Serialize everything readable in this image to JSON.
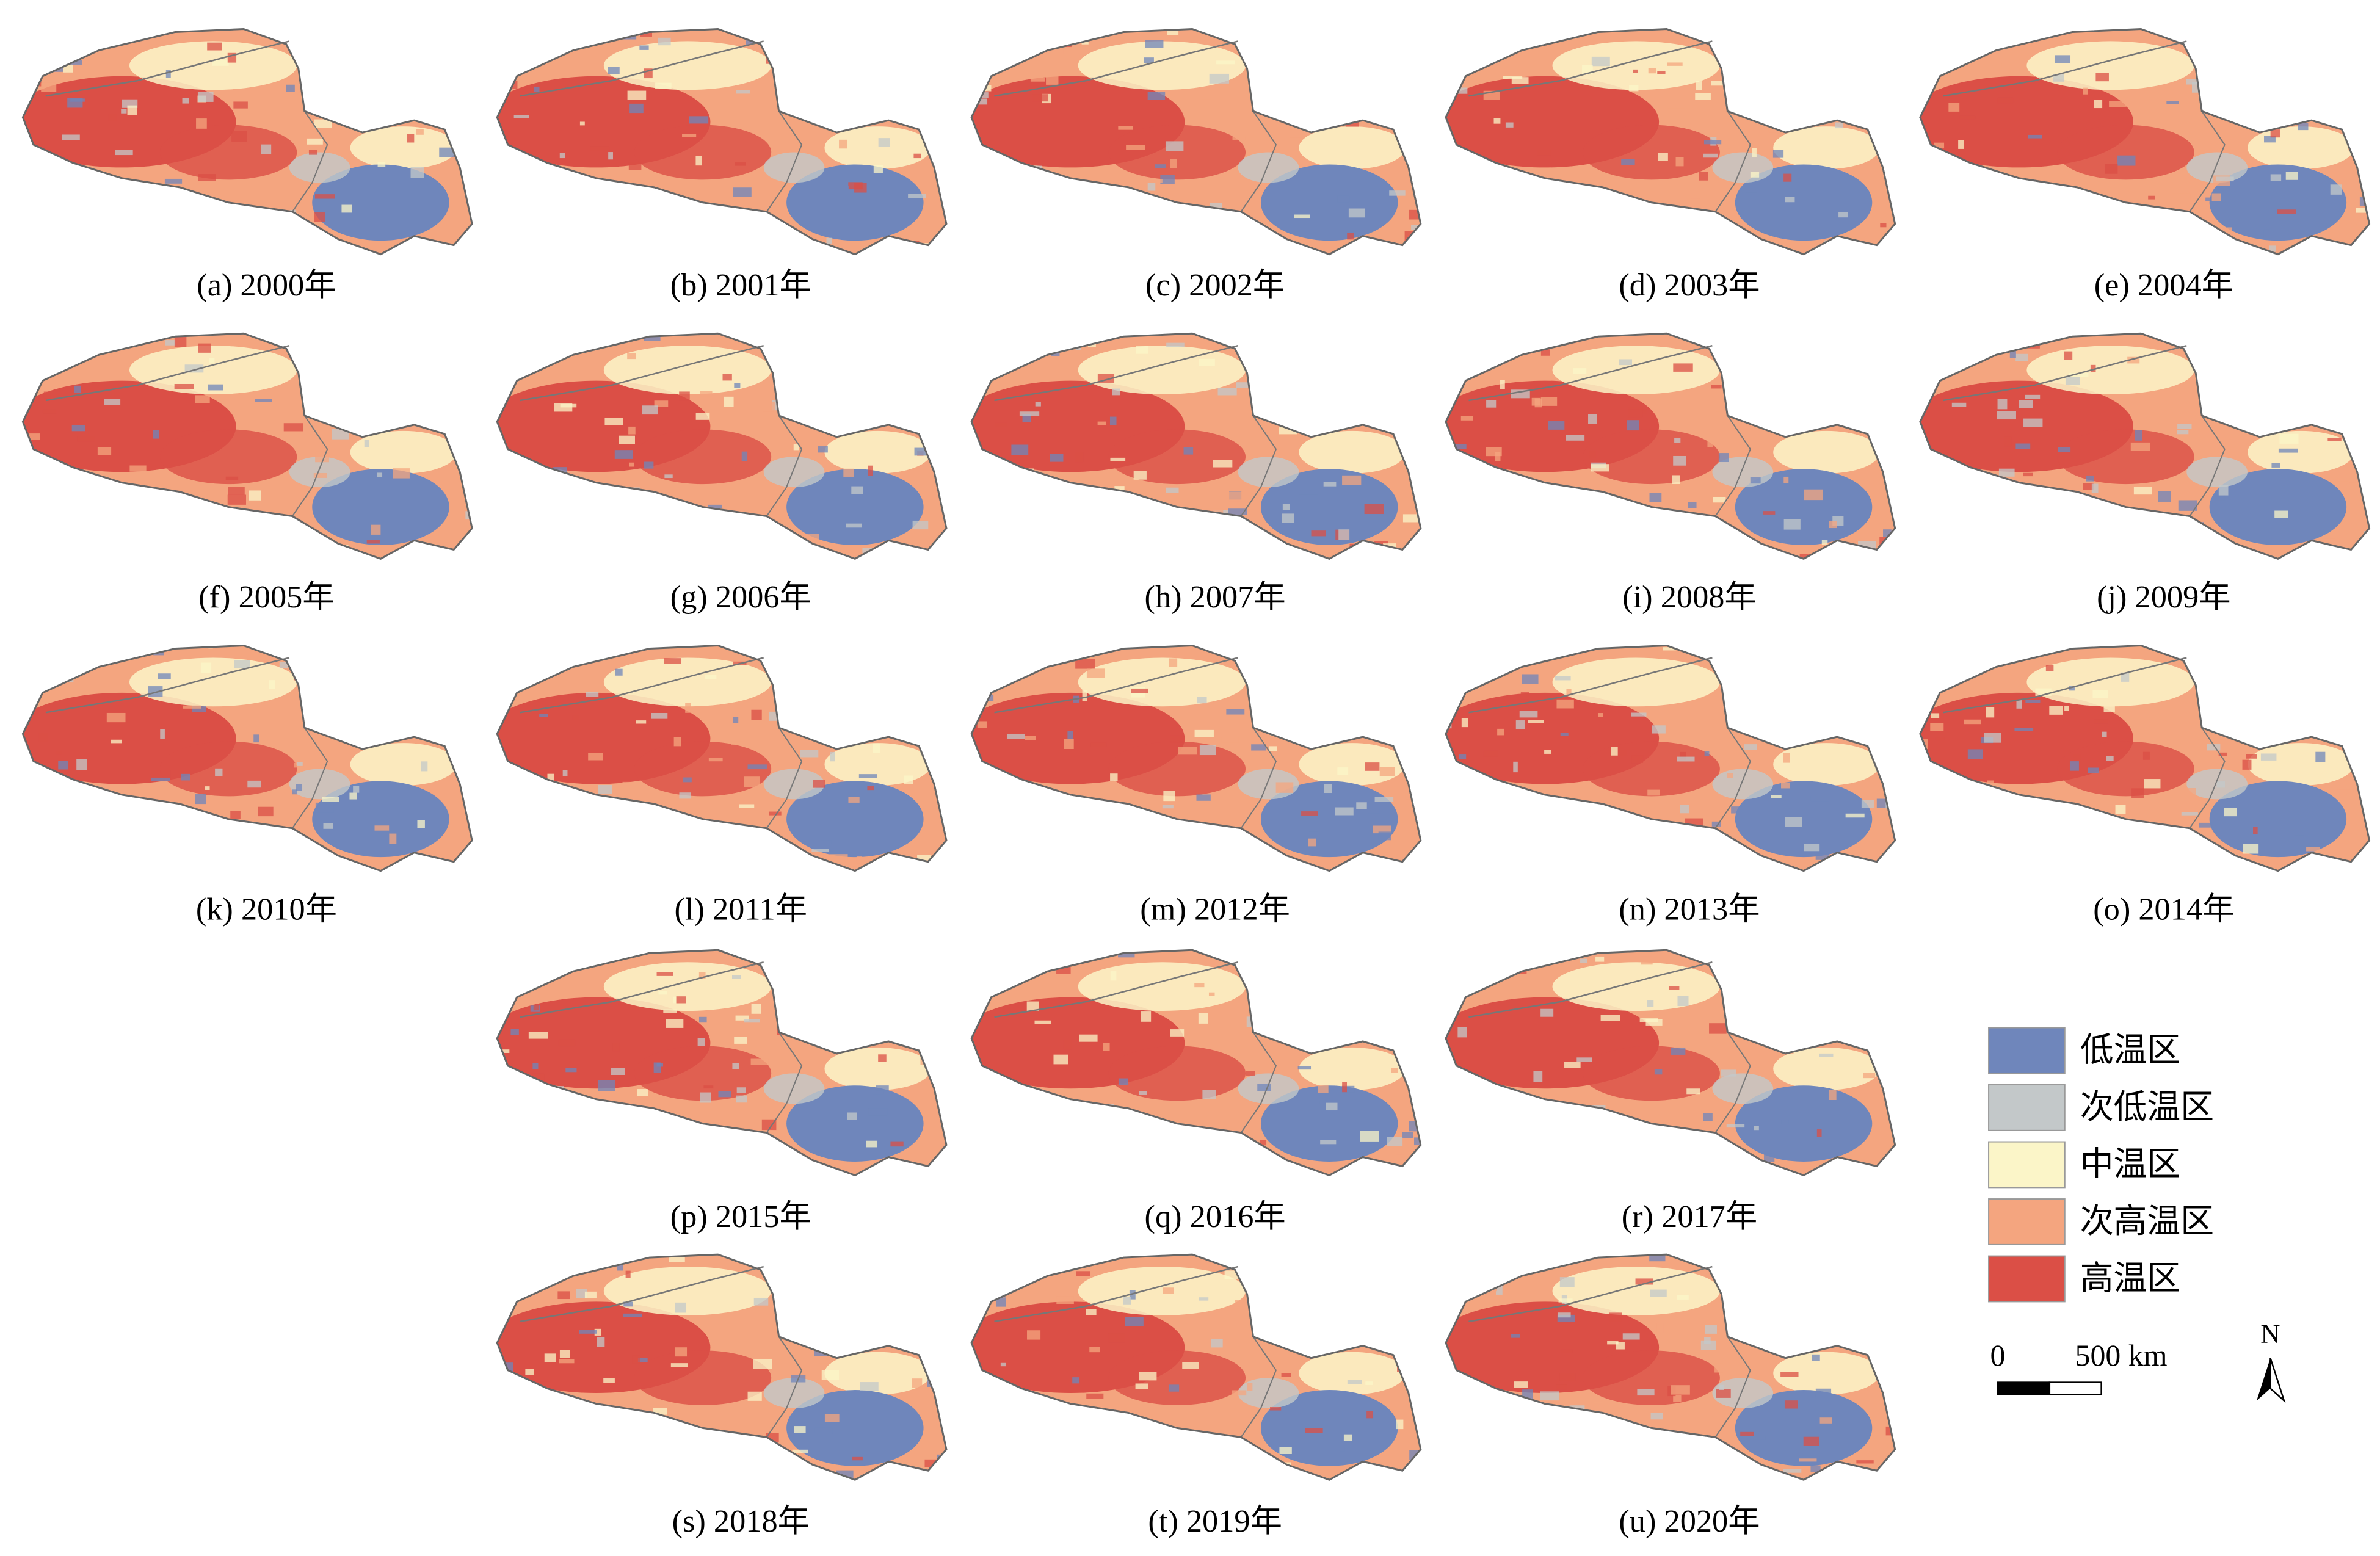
{
  "panels": [
    {
      "label": "(a) 2000年"
    },
    {
      "label": "(b) 2001年"
    },
    {
      "label": "(c) 2002年"
    },
    {
      "label": "(d) 2003年"
    },
    {
      "label": "(e) 2004年"
    },
    {
      "label": "(f) 2005年"
    },
    {
      "label": "(g) 2006年"
    },
    {
      "label": "(h) 2007年"
    },
    {
      "label": "(i) 2008年"
    },
    {
      "label": "(j) 2009年"
    },
    {
      "label": "(k) 2010年"
    },
    {
      "label": "(l) 2011年"
    },
    {
      "label": "(m) 2012年"
    },
    {
      "label": "(n) 2013年"
    },
    {
      "label": "(o) 2014年"
    },
    {
      "label": "(p) 2015年"
    },
    {
      "label": "(q) 2016年"
    },
    {
      "label": "(r) 2017年"
    },
    {
      "label": "(s) 2018年"
    },
    {
      "label": "(t) 2019年"
    },
    {
      "label": "(u) 2020年"
    }
  ],
  "legend": {
    "items": [
      {
        "label": "低温区",
        "color": "#6f86bb"
      },
      {
        "label": "次低温区",
        "color": "#c3c8c9"
      },
      {
        "label": "中温区",
        "color": "#fbf5c8"
      },
      {
        "label": "次高温区",
        "color": "#f4a57f"
      },
      {
        "label": "高温区",
        "color": "#db4f46"
      }
    ]
  },
  "scale_bar": {
    "start": "0",
    "end": "500 km"
  },
  "north": "N"
}
